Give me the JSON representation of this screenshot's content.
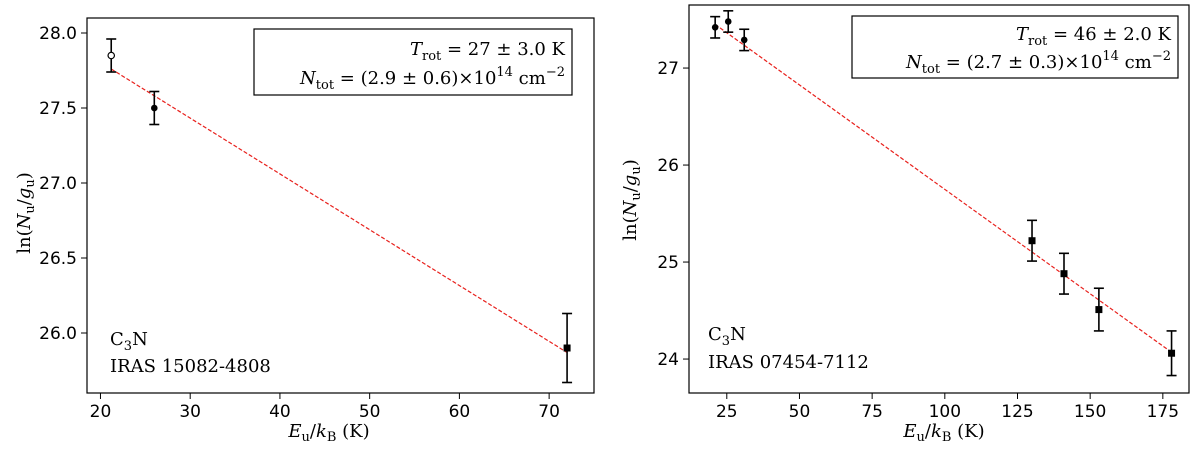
{
  "chart_data": [
    {
      "type": "scatter",
      "xlabel": "E_u/k_B (K)",
      "ylabel": "ln(N_u/g_u)",
      "xlim": [
        18.5,
        75
      ],
      "ylim": [
        25.6,
        28.1
      ],
      "xticks": [
        20,
        30,
        40,
        50,
        60,
        70
      ],
      "yticks": [
        26.0,
        26.5,
        27.0,
        27.5,
        28.0
      ],
      "xtick_labels": [
        "20",
        "30",
        "40",
        "50",
        "60",
        "70"
      ],
      "ytick_labels": [
        "26.0",
        "26.5",
        "27.0",
        "27.5",
        "28.0"
      ],
      "points": [
        {
          "x": 21.2,
          "y": 27.85,
          "err": 0.11,
          "marker": "open-circle"
        },
        {
          "x": 26.0,
          "y": 27.5,
          "err": 0.11,
          "marker": "filled-circle"
        },
        {
          "x": 72.0,
          "y": 25.9,
          "err": 0.23,
          "marker": "filled-square"
        }
      ],
      "fit": {
        "x": [
          21.2,
          72.0
        ],
        "y": [
          27.76,
          25.87
        ]
      },
      "legend": {
        "trot_sym": "T",
        "trot_sub": "rot",
        "trot_value": " = 27 ± 3.0 K",
        "ntot_sym": "N",
        "ntot_sub": "tot",
        "ntot_value_a": " = (2.9 ± 0.6)×10",
        "ntot_exp": "14",
        "ntot_unit": " cm",
        "ntot_unit_exp": "−2"
      },
      "annotation": {
        "molecule_a": "C",
        "molecule_sub": "3",
        "molecule_b": "N",
        "source": "IRAS 15082-4808"
      }
    },
    {
      "type": "scatter",
      "xlabel": "E_u/k_B (K)",
      "ylabel": "ln(N_u/g_u)",
      "xlim": [
        12,
        184
      ],
      "ylim": [
        23.65,
        27.65
      ],
      "xticks": [
        25,
        50,
        75,
        100,
        125,
        150,
        175
      ],
      "yticks": [
        24,
        25,
        26,
        27
      ],
      "xtick_labels": [
        "25",
        "50",
        "75",
        "100",
        "125",
        "150",
        "175"
      ],
      "ytick_labels": [
        "24",
        "25",
        "26",
        "27"
      ],
      "points": [
        {
          "x": 21.0,
          "y": 27.42,
          "err": 0.11,
          "marker": "filled-circle"
        },
        {
          "x": 25.5,
          "y": 27.48,
          "err": 0.11,
          "marker": "filled-circle"
        },
        {
          "x": 31.0,
          "y": 27.29,
          "err": 0.11,
          "marker": "filled-circle"
        },
        {
          "x": 130.0,
          "y": 25.22,
          "err": 0.21,
          "marker": "filled-square"
        },
        {
          "x": 141.0,
          "y": 24.88,
          "err": 0.21,
          "marker": "filled-square"
        },
        {
          "x": 153.0,
          "y": 24.51,
          "err": 0.22,
          "marker": "filled-square"
        },
        {
          "x": 178.0,
          "y": 24.06,
          "err": 0.23,
          "marker": "filled-square"
        }
      ],
      "fit": {
        "x": [
          21.0,
          178.0
        ],
        "y": [
          27.45,
          24.07
        ]
      },
      "legend": {
        "trot_sym": "T",
        "trot_sub": "rot",
        "trot_value": " = 46 ± 2.0 K",
        "ntot_sym": "N",
        "ntot_sub": "tot",
        "ntot_value_a": " = (2.7 ± 0.3)×10",
        "ntot_exp": "14",
        "ntot_unit": " cm",
        "ntot_unit_exp": "−2"
      },
      "annotation": {
        "molecule_a": "C",
        "molecule_sub": "3",
        "molecule_b": "N",
        "source": "IRAS 07454-7112"
      }
    }
  ]
}
